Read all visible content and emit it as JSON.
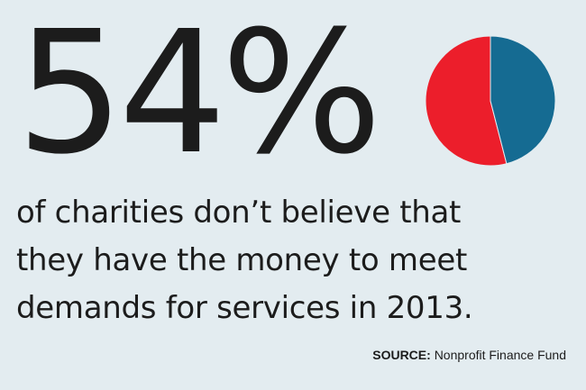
{
  "headline": {
    "value": "54%"
  },
  "caption": {
    "lines": [
      "of charities don’t believe that",
      "they have the money to meet",
      "demands for services in 2013."
    ]
  },
  "source": {
    "label": "SOURCE:",
    "text": "Nonprofit Finance Fund"
  },
  "chart_data": {
    "type": "pie",
    "categories": [
      "red slice",
      "blue slice"
    ],
    "values": [
      54,
      46
    ],
    "colors": [
      "#ec1e2b",
      "#156b92"
    ],
    "title": "",
    "legend": "none"
  }
}
